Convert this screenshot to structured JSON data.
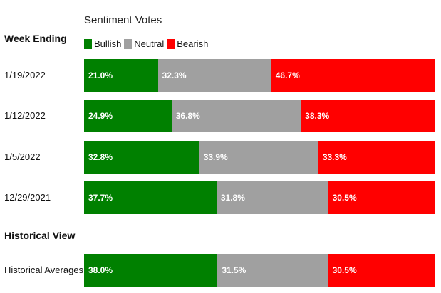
{
  "chart_data": {
    "type": "bar",
    "stacked": true,
    "orientation": "horizontal",
    "title": "Sentiment Votes",
    "category_header": "Week Ending",
    "legend": [
      {
        "name": "Bullish",
        "color": "#008000"
      },
      {
        "name": "Neutral",
        "color": "#a0a0a0"
      },
      {
        "name": "Bearish",
        "color": "#ff0000"
      }
    ],
    "categories": [
      "1/19/2022",
      "1/12/2022",
      "1/5/2022",
      "12/29/2021"
    ],
    "series": [
      {
        "name": "Bullish",
        "values": [
          21.0,
          24.9,
          32.8,
          37.7
        ]
      },
      {
        "name": "Neutral",
        "values": [
          32.3,
          36.8,
          33.9,
          31.8
        ]
      },
      {
        "name": "Bearish",
        "values": [
          46.7,
          38.3,
          33.3,
          30.5
        ]
      }
    ],
    "value_labels": [
      [
        "21.0%",
        "32.3%",
        "46.7%"
      ],
      [
        "24.9%",
        "36.8%",
        "38.3%"
      ],
      [
        "32.8%",
        "33.9%",
        "33.3%"
      ],
      [
        "37.7%",
        "31.8%",
        "30.5%"
      ]
    ],
    "xlim": [
      0,
      100
    ],
    "historical": {
      "heading": "Historical View",
      "category": "Historical Averages",
      "values": [
        38.0,
        31.5,
        30.5
      ],
      "value_labels": [
        "38.0%",
        "31.5%",
        "30.5%"
      ]
    }
  }
}
